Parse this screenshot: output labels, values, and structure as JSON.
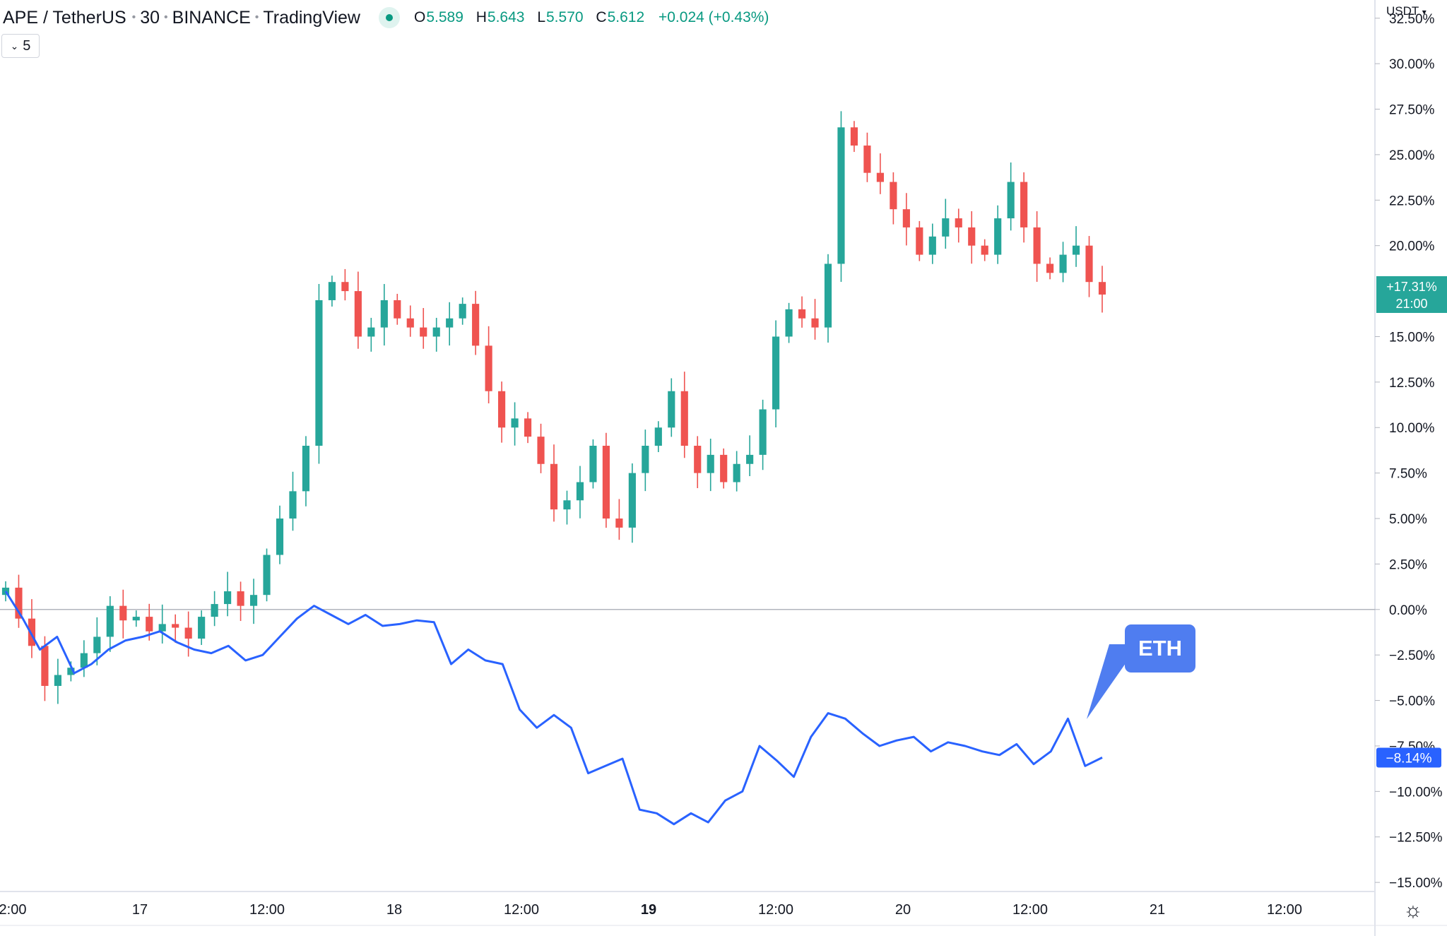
{
  "header": {
    "symbol": "APE / TetherUS",
    "interval": "30",
    "exchange": "BINANCE",
    "source": "TradingView",
    "open_label": "O",
    "open": "5.589",
    "high_label": "H",
    "high": "5.643",
    "low_label": "L",
    "low": "5.570",
    "close_label": "C",
    "close": "5.612",
    "change": "+0.024 (+0.43%)",
    "collapse_count": "5"
  },
  "price_scale": {
    "currency": "USDT",
    "tick_labels": [
      "32.50%",
      "30.00%",
      "27.50%",
      "25.00%",
      "22.50%",
      "20.00%",
      "15.00%",
      "12.50%",
      "10.00%",
      "7.50%",
      "5.00%",
      "2.50%",
      "0.00%",
      "−2.50%",
      "−5.00%",
      "−7.50%",
      "−10.00%",
      "−12.50%",
      "−15.00%"
    ],
    "ape_badge_value": "+17.31%",
    "ape_badge_time": "21:00",
    "eth_badge_value": "−8.14%"
  },
  "time_axis": {
    "labels": [
      "2:00",
      "17",
      "12:00",
      "18",
      "12:00",
      "19",
      "12:00",
      "20",
      "12:00",
      "21",
      "12:00"
    ],
    "bold_index": 5
  },
  "annotation": {
    "text": "ETH"
  },
  "colors": {
    "up": "#26a69a",
    "down": "#ef5350",
    "eth": "#2962ff",
    "accent": "#4f7df0",
    "badge_up": "#26a69a"
  },
  "chart_data": {
    "type": "line",
    "title": "APE / TetherUS · 30 · BINANCE",
    "ylabel": "",
    "y_unit": "%",
    "ylim": [
      -15.5,
      33.5
    ],
    "x_ticks": [
      "2:00",
      "17",
      "12:00",
      "18",
      "12:00",
      "19",
      "12:00",
      "20",
      "12:00",
      "21",
      "12:00"
    ],
    "series": [
      {
        "name": "APE / TetherUS",
        "style": "candlestick",
        "values": [
          1.2,
          -0.5,
          -2.0,
          -4.2,
          -3.6,
          -3.2,
          -2.4,
          -1.5,
          0.2,
          -0.6,
          -0.4,
          -1.2,
          -0.8,
          -1.0,
          -1.6,
          -0.4,
          0.3,
          1.0,
          0.2,
          0.8,
          3.0,
          5.0,
          6.5,
          9.0,
          17.0,
          18.0,
          17.5,
          15.0,
          15.5,
          17.0,
          16.0,
          15.5,
          15.0,
          15.5,
          16.0,
          16.8,
          14.5,
          12.0,
          10.0,
          10.5,
          9.5,
          8.0,
          5.5,
          6.0,
          7.0,
          9.0,
          5.0,
          4.5,
          7.5,
          9.0,
          10.0,
          12.0,
          9.0,
          7.5,
          8.5,
          7.0,
          8.0,
          8.5,
          11.0,
          15.0,
          16.5,
          16.0,
          15.5,
          19.0,
          26.5,
          25.5,
          24.0,
          23.5,
          22.0,
          21.0,
          19.5,
          20.5,
          21.5,
          21.0,
          20.0,
          19.5,
          21.5,
          23.5,
          21.0,
          19.0,
          18.5,
          19.5,
          20.0,
          18.0,
          17.31
        ]
      },
      {
        "name": "ETH",
        "style": "line",
        "values": [
          1.0,
          -0.5,
          -2.2,
          -1.5,
          -3.5,
          -3.0,
          -2.2,
          -1.7,
          -1.5,
          -1.2,
          -1.8,
          -2.2,
          -2.4,
          -2.0,
          -2.8,
          -2.5,
          -1.5,
          -0.5,
          0.2,
          -0.3,
          -0.8,
          -0.3,
          -0.9,
          -0.8,
          -0.6,
          -0.7,
          -3.0,
          -2.2,
          -2.8,
          -3.0,
          -5.5,
          -6.5,
          -5.8,
          -6.5,
          -9.0,
          -8.6,
          -8.2,
          -11.0,
          -11.2,
          -11.8,
          -11.2,
          -11.7,
          -10.5,
          -10.0,
          -7.5,
          -8.3,
          -9.2,
          -7.0,
          -5.7,
          -6.0,
          -6.8,
          -7.5,
          -7.2,
          -7.0,
          -7.8,
          -7.3,
          -7.5,
          -7.8,
          -8.0,
          -7.4,
          -8.5,
          -7.8,
          -6.0,
          -8.6,
          -8.14
        ]
      }
    ],
    "grid": false,
    "legend": "none"
  }
}
